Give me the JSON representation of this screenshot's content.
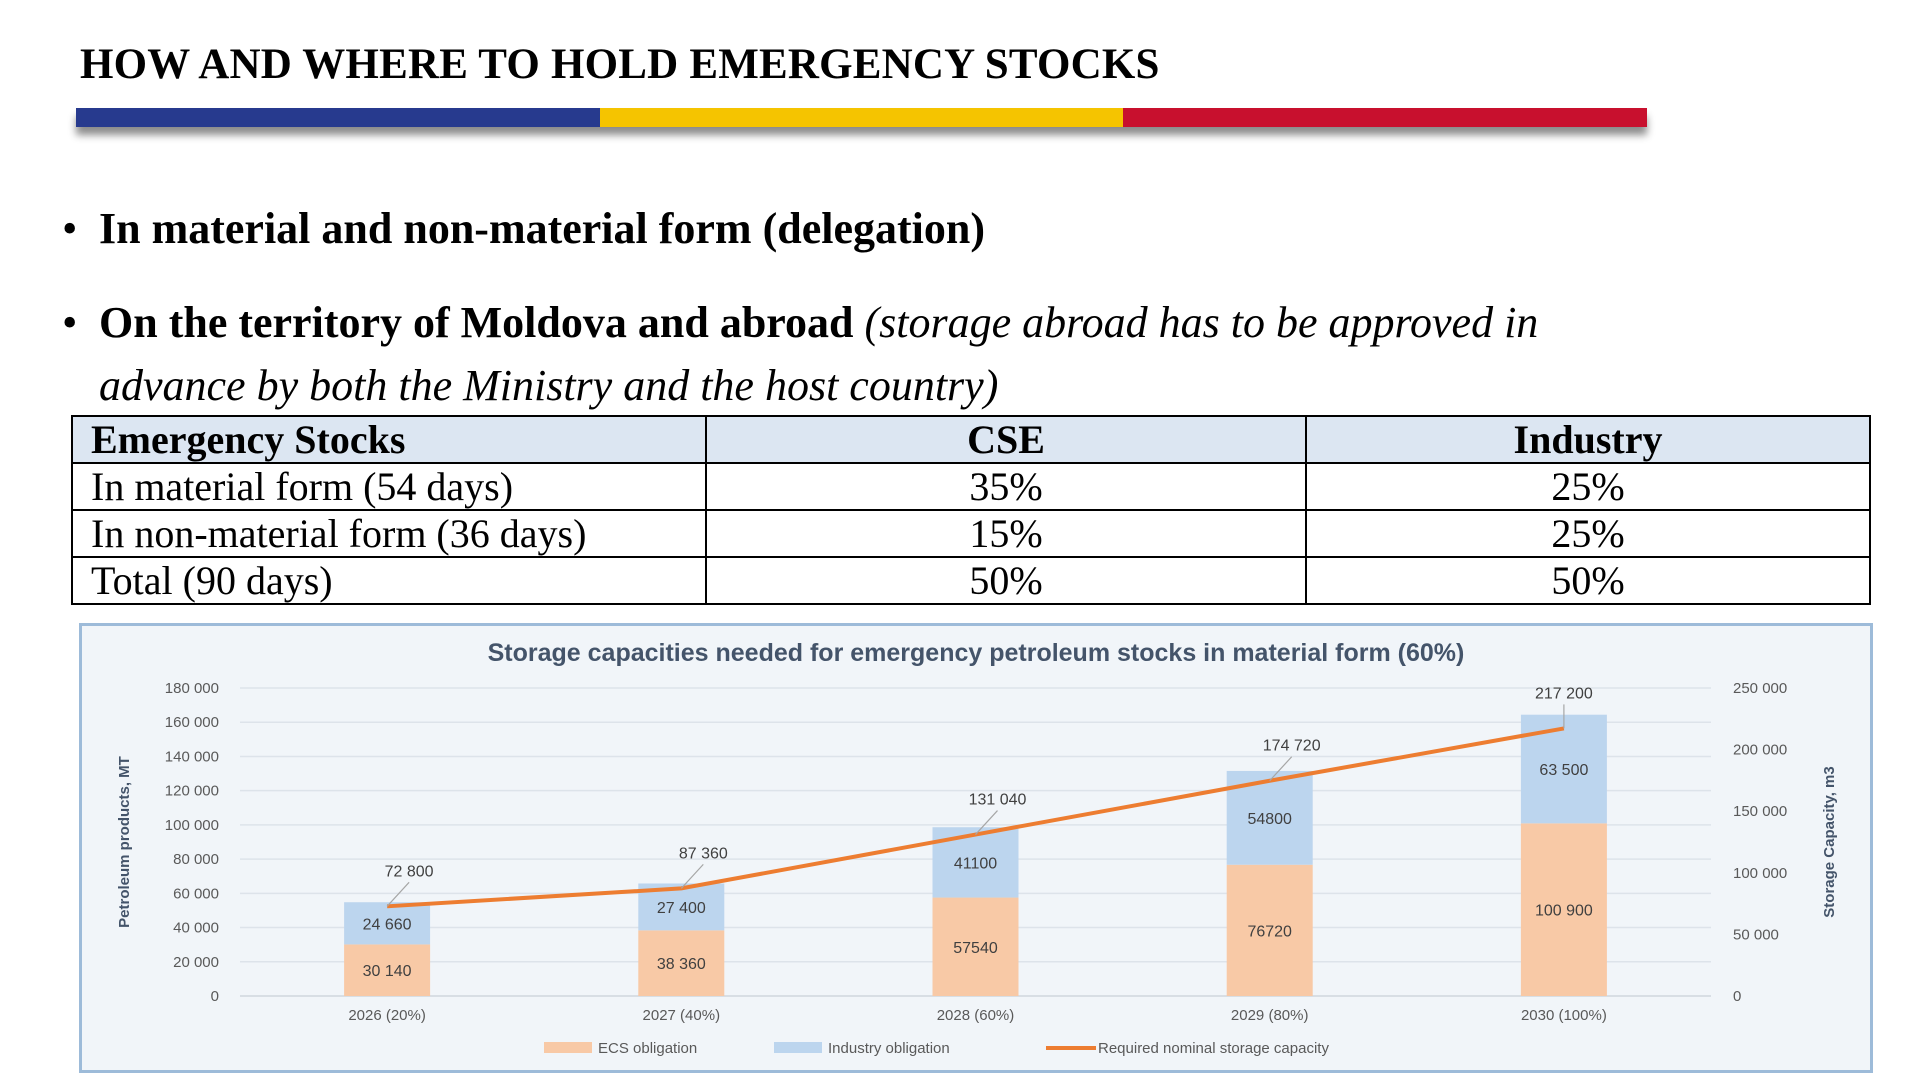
{
  "slide": {
    "title": "HOW AND WHERE TO HOLD EMERGENCY STOCKS",
    "stripe_colors": [
      "#273a8e",
      "#f5c400",
      "#c8102e"
    ],
    "bullets": [
      {
        "bold": "In material and non-material form (delegation)",
        "italic": ""
      },
      {
        "bold": "On the territory of Moldova and abroad",
        "italic": "(storage abroad has to be approved in",
        "italic_line2": "advance by both the Ministry and the host country)"
      }
    ],
    "bullet_symbol": "•"
  },
  "table": {
    "headers": [
      "Emergency Stocks",
      "CSE",
      "Industry"
    ],
    "rows": [
      [
        "In material form (54 days)",
        "35%",
        "25%"
      ],
      [
        "In non-material form (36 days)",
        "15%",
        "25%"
      ],
      [
        "Total (90 days)",
        "50%",
        "50%"
      ]
    ]
  },
  "chart_data": {
    "type": "bar",
    "stacked": true,
    "title": "Storage capacities needed for emergency petroleum stocks in material form (60%)",
    "categories": [
      "2026 (20%)",
      "2027 (40%)",
      "2028 (60%)",
      "2029 (80%)",
      "2030 (100%)"
    ],
    "ylabel": "Petroleum products, MT",
    "y2label": "Storage Capacity, m3",
    "ylim": [
      0,
      180000
    ],
    "y2lim": [
      0,
      250000
    ],
    "yticks": [
      "0",
      "20 000",
      "40 000",
      "60 000",
      "80 000",
      "100 000",
      "120 000",
      "140 000",
      "160 000",
      "180 000"
    ],
    "y2ticks": [
      "0",
      "50 000",
      "100 000",
      "150 000",
      "200 000",
      "250 000"
    ],
    "grid": true,
    "legend_position": "bottom",
    "series": [
      {
        "name": "ECS obligation",
        "type": "bar",
        "axis": "left",
        "color": "#f8c9a6",
        "values": [
          30140,
          38360,
          57540,
          76720,
          100900
        ],
        "labels": [
          "30 140",
          "38 360",
          "57540",
          "76720",
          "100 900"
        ]
      },
      {
        "name": "Industry obligation",
        "type": "bar",
        "axis": "left",
        "color": "#bcd5ee",
        "values": [
          24660,
          27400,
          41100,
          54800,
          63500
        ],
        "labels": [
          "24 660",
          "27 400",
          "41100",
          "54800",
          "63 500"
        ]
      },
      {
        "name": "Required nominal storage capacity",
        "type": "line",
        "axis": "right",
        "color": "#ed7d31",
        "values": [
          72800,
          87360,
          131040,
          174720,
          217200
        ],
        "labels": [
          "72 800",
          "87 360",
          "131 040",
          "174 720",
          "217 200"
        ]
      }
    ]
  }
}
